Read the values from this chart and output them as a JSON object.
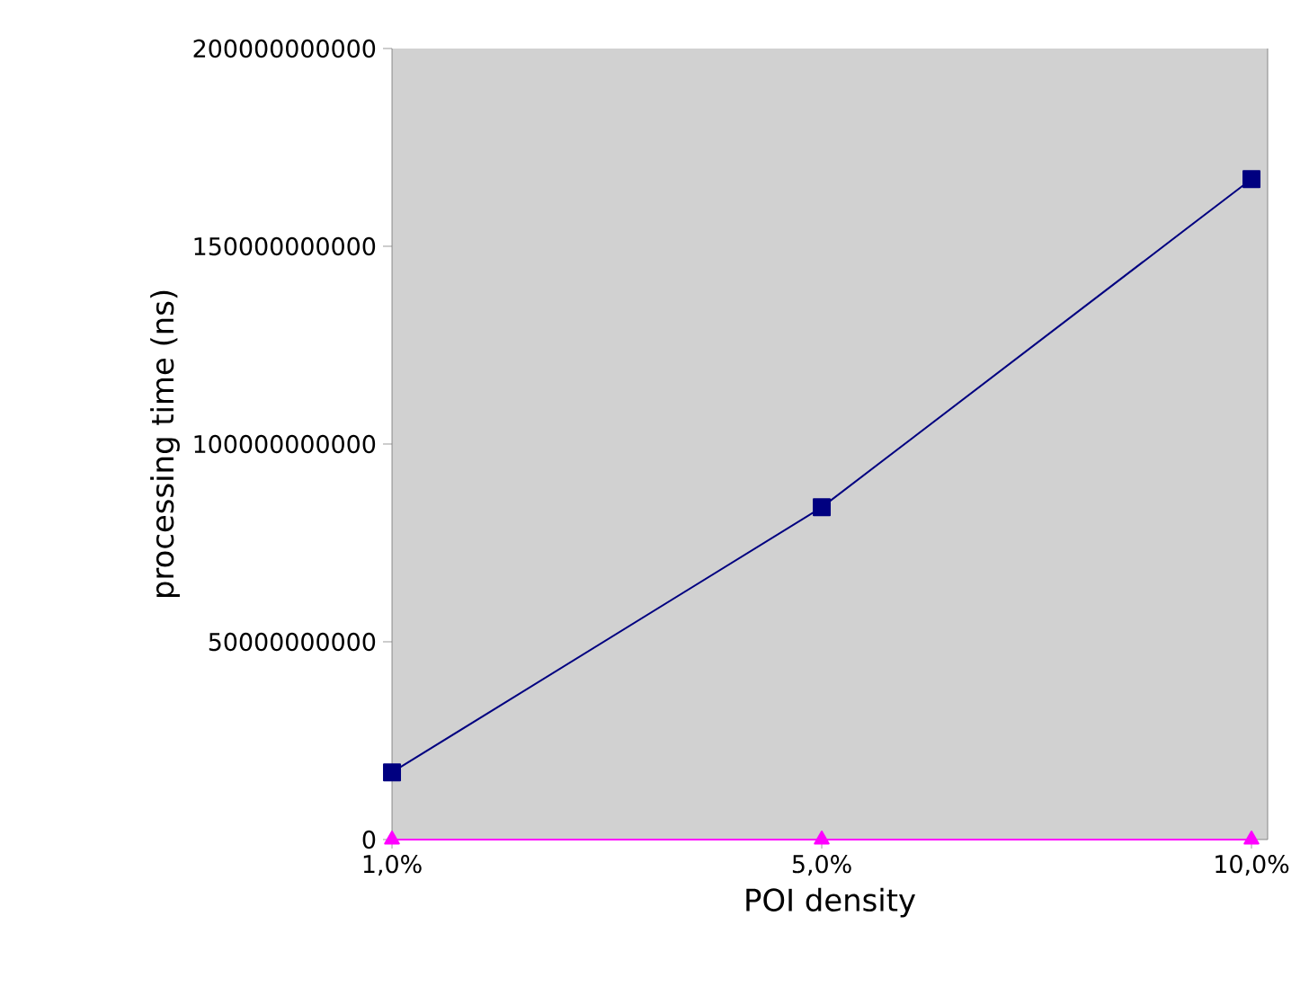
{
  "chart_data": {
    "type": "line",
    "xlabel": "POI density",
    "ylabel": "processing time (ns)",
    "categories": [
      "1,0%",
      "5,0%",
      "10,0%"
    ],
    "series": [
      {
        "color": "#000080",
        "values": [
          17000000000,
          84000000000,
          167000000000
        ],
        "marker": "square"
      },
      {
        "color": "#ff00ff",
        "values": [
          0,
          0,
          0
        ],
        "marker": "triangle"
      }
    ],
    "ylim": [
      0,
      200000000000
    ],
    "yticks": [
      0,
      50000000000,
      100000000000,
      150000000000,
      200000000000
    ],
    "grid": false
  }
}
